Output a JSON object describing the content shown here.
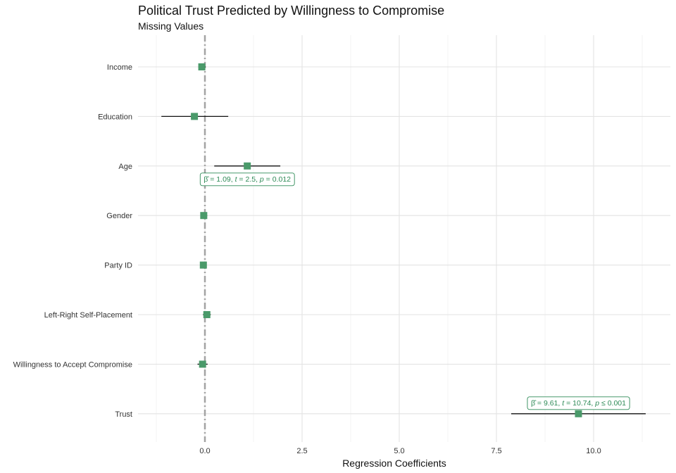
{
  "chart_data": {
    "type": "scatter",
    "title": "Political Trust Predicted by Willingness to Compromise",
    "subtitle": "Missing Values",
    "xlabel": "Regression Coefficients",
    "ylabel": "",
    "xlim": [
      -1.75,
      12.25
    ],
    "x_ticks": [
      0,
      2.5,
      5,
      7.5,
      10
    ],
    "x_tick_labels": [
      "0.0",
      "2.5",
      "5.0",
      "7.5",
      "10.0"
    ],
    "reference_line": 0,
    "grid": true,
    "point_color": "#4a9a6a",
    "annotation_color": "#2e8b57",
    "categories": [
      "Income",
      "Education",
      "Age",
      "Gender",
      "Party ID",
      "Left-Right Self-Placement",
      "Willingness to Accept Compromise",
      "Trust"
    ],
    "estimates": [
      -0.08,
      -0.27,
      1.09,
      -0.03,
      -0.04,
      0.05,
      -0.06,
      9.61
    ],
    "ci_low": [
      -0.17,
      -1.12,
      0.24,
      -0.1,
      -0.1,
      -0.05,
      -0.19,
      7.88
    ],
    "ci_high": [
      0.02,
      0.6,
      1.94,
      0.06,
      0.04,
      0.15,
      0.07,
      11.34
    ],
    "annotations": [
      {
        "category": "Age",
        "beta": "1.09",
        "t": "2.5",
        "p_op": "=",
        "p": "0.012"
      },
      {
        "category": "Trust",
        "beta": "9.61",
        "t": "10.74",
        "p_op": "≤",
        "p": "0.001"
      }
    ]
  }
}
